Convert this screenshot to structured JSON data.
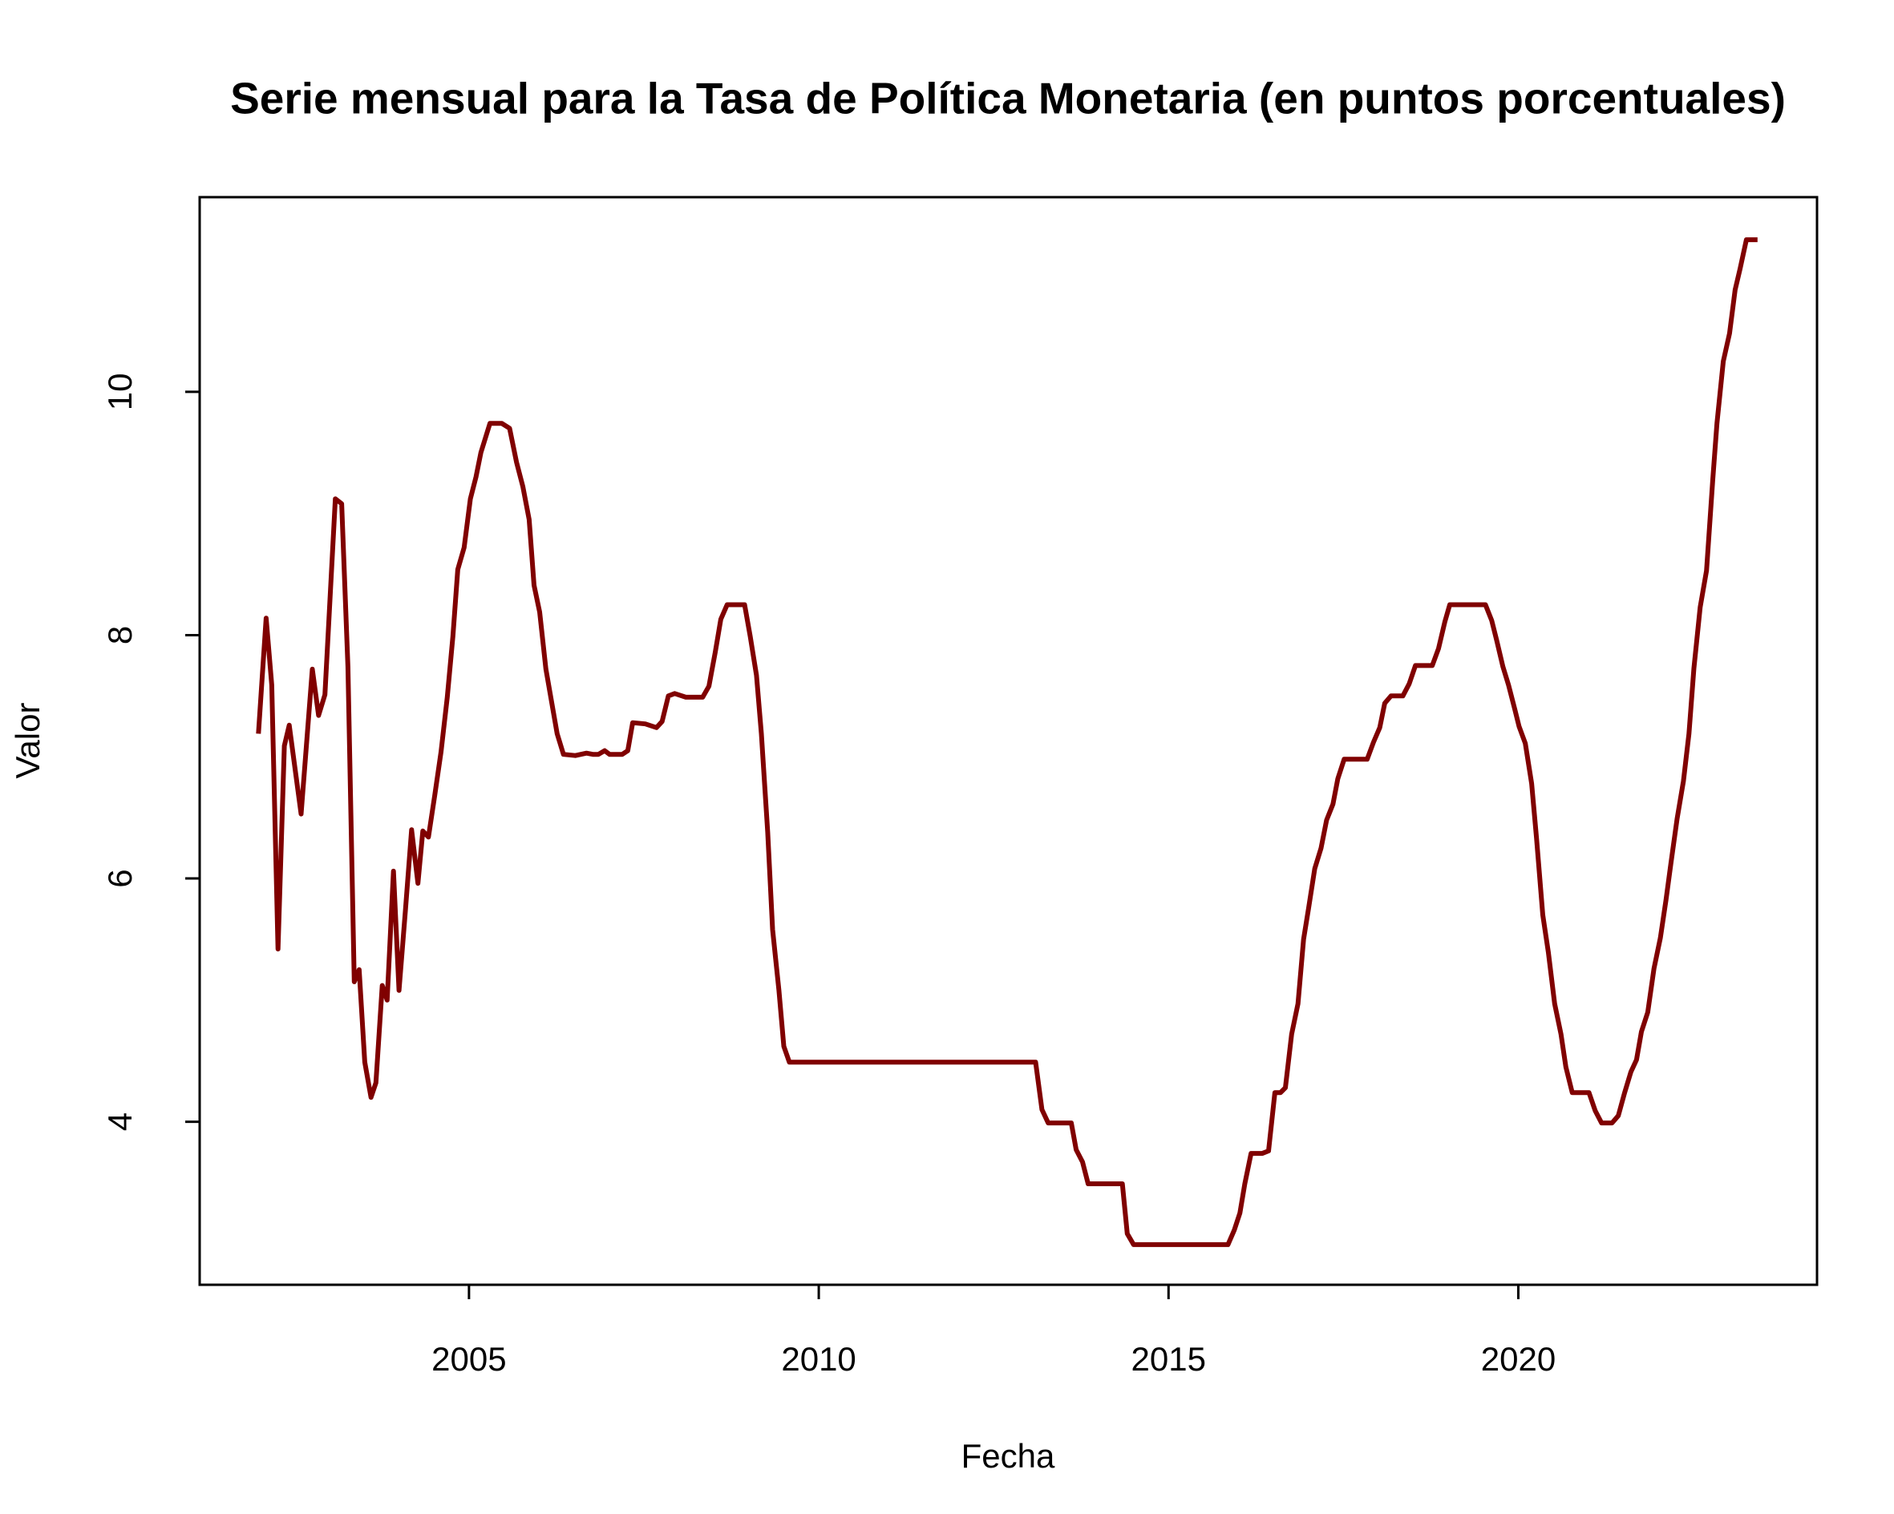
{
  "chart_data": {
    "type": "line",
    "title": "Serie mensual para la Tasa de Política Monetaria (en puntos porcentuales)",
    "x_label": "Fecha",
    "y_label": "Valor",
    "color": "#800000",
    "x": [
      2001.99,
      2002.1,
      2002.18,
      2002.27,
      2002.36,
      2002.43,
      2002.6,
      2002.76,
      2002.85,
      2002.94,
      2003.09,
      2003.18,
      2003.27,
      2003.36,
      2003.43,
      2003.51,
      2003.6,
      2003.67,
      2003.76,
      2003.83,
      2003.92,
      2004.0,
      2004.09,
      2004.18,
      2004.27,
      2004.34,
      2004.42,
      2004.51,
      2004.6,
      2004.69,
      2004.77,
      2004.84,
      2004.93,
      2005.02,
      2005.1,
      2005.17,
      2005.3,
      2005.47,
      2005.58,
      2005.68,
      2005.77,
      2005.86,
      2005.93,
      2006.01,
      2006.1,
      2006.26,
      2006.35,
      2006.52,
      2006.68,
      2006.77,
      2006.85,
      2006.94,
      2007.01,
      2007.19,
      2007.27,
      2007.34,
      2007.52,
      2007.68,
      2007.76,
      2007.85,
      2007.94,
      2008.1,
      2008.34,
      2008.43,
      2008.52,
      2008.6,
      2008.69,
      2008.94,
      2009.02,
      2009.11,
      2009.18,
      2009.27,
      2009.34,
      2009.43,
      2009.5,
      2009.58,
      2013.1,
      2013.19,
      2013.28,
      2013.61,
      2013.68,
      2013.77,
      2013.85,
      2014.34,
      2014.41,
      2014.5,
      2015.85,
      2015.94,
      2016.02,
      2016.09,
      2016.18,
      2016.34,
      2016.43,
      2016.52,
      2016.6,
      2016.67,
      2016.76,
      2016.85,
      2016.93,
      2017.0,
      2017.09,
      2017.18,
      2017.26,
      2017.35,
      2017.42,
      2017.51,
      2017.84,
      2017.93,
      2018.02,
      2018.09,
      2018.18,
      2018.35,
      2018.44,
      2018.53,
      2018.77,
      2018.86,
      2018.95,
      2019.02,
      2019.53,
      2019.62,
      2019.69,
      2019.78,
      2019.86,
      2019.95,
      2020.01,
      2020.1,
      2020.19,
      2020.26,
      2020.35,
      2020.43,
      2020.52,
      2020.61,
      2020.68,
      2020.77,
      2021.01,
      2021.1,
      2021.19,
      2021.34,
      2021.43,
      2021.52,
      2021.61,
      2021.69,
      2021.76,
      2021.85,
      2021.94,
      2022.03,
      2022.11,
      2022.18,
      2022.27,
      2022.36,
      2022.44,
      2022.51,
      2022.6,
      2022.69,
      2022.78,
      2022.84,
      2022.93,
      2023.02,
      2023.1,
      2023.17,
      2023.26,
      2023.42
    ],
    "values": [
      7.19,
      8.14,
      7.59,
      5.42,
      7.09,
      7.26,
      6.53,
      7.72,
      7.34,
      7.51,
      9.12,
      9.08,
      7.74,
      5.15,
      5.25,
      4.49,
      4.2,
      4.32,
      5.12,
      5.0,
      6.06,
      5.08,
      5.73,
      6.4,
      5.96,
      6.39,
      6.34,
      6.68,
      7.04,
      7.49,
      7.99,
      8.54,
      8.72,
      9.12,
      9.3,
      9.5,
      9.74,
      9.74,
      9.7,
      9.42,
      9.22,
      8.95,
      8.41,
      8.19,
      7.72,
      7.19,
      7.02,
      7.01,
      7.03,
      7.02,
      7.02,
      7.05,
      7.02,
      7.02,
      7.05,
      7.28,
      7.27,
      7.24,
      7.29,
      7.5,
      7.52,
      7.49,
      7.49,
      7.58,
      7.86,
      8.13,
      8.25,
      8.25,
      7.99,
      7.67,
      7.19,
      6.38,
      5.58,
      5.08,
      4.62,
      4.49,
      4.49,
      4.1,
      3.99,
      3.99,
      3.77,
      3.67,
      3.49,
      3.49,
      3.08,
      2.99,
      2.99,
      3.11,
      3.25,
      3.49,
      3.74,
      3.74,
      3.76,
      4.24,
      4.24,
      4.28,
      4.72,
      4.97,
      5.5,
      5.75,
      6.08,
      6.25,
      6.48,
      6.61,
      6.82,
      6.98,
      6.98,
      7.12,
      7.24,
      7.44,
      7.5,
      7.5,
      7.6,
      7.75,
      7.75,
      7.89,
      8.11,
      8.25,
      8.25,
      8.12,
      7.96,
      7.74,
      7.59,
      7.39,
      7.25,
      7.11,
      6.78,
      6.33,
      5.7,
      5.39,
      4.97,
      4.72,
      4.45,
      4.24,
      4.24,
      4.09,
      3.99,
      3.99,
      4.05,
      4.24,
      4.41,
      4.51,
      4.74,
      4.9,
      5.26,
      5.51,
      5.82,
      6.12,
      6.49,
      6.8,
      7.19,
      7.73,
      8.23,
      8.53,
      9.28,
      9.74,
      10.25,
      10.48,
      10.84,
      11.01,
      11.25,
      11.25
    ],
    "xlim": [
      2001.15,
      2024.27
    ],
    "ylim": [
      2.66,
      11.6
    ],
    "xticks": [
      2005,
      2010,
      2015,
      2020
    ],
    "yticks": [
      4,
      6,
      8,
      10
    ]
  }
}
